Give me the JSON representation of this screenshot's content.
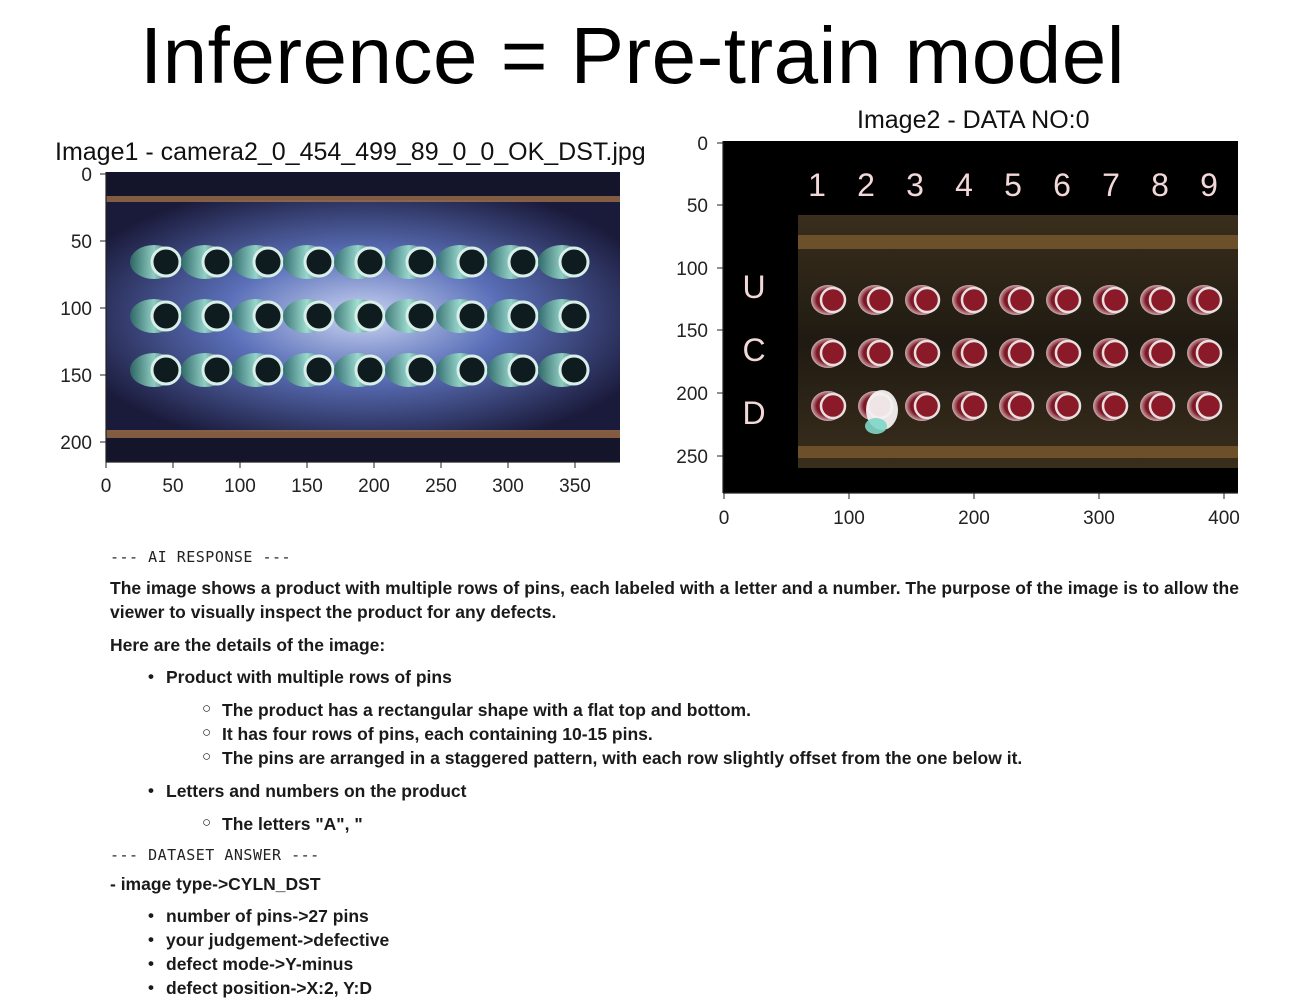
{
  "title": "Inference = Pre-train model",
  "image1": {
    "title": "Image1 - camera2_0_454_499_89_0_0_OK_DST.jpg",
    "yticks": [
      "0",
      "50",
      "100",
      "150",
      "200"
    ],
    "xticks": [
      "0",
      "50",
      "100",
      "150",
      "200",
      "250",
      "300",
      "350"
    ]
  },
  "image2": {
    "title": "Image2 - DATA NO:0",
    "yticks": [
      "0",
      "50",
      "100",
      "150",
      "200",
      "250"
    ],
    "xticks": [
      "0",
      "100",
      "200",
      "300",
      "400"
    ],
    "col_labels": [
      "1",
      "2",
      "3",
      "4",
      "5",
      "6",
      "7",
      "8",
      "9"
    ],
    "row_labels": [
      "U",
      "C",
      "D"
    ]
  },
  "ai_response": {
    "header": "--- AI RESPONSE ---",
    "paragraph": "The image shows a product with multiple rows of pins, each labeled with a letter and a number. The purpose of the image is to allow the viewer to visually inspect the product for any defects.",
    "details_intro": "Here are the details of the image:",
    "bullets": [
      {
        "text": "Product with multiple rows of pins",
        "sub": [
          "The product has a rectangular shape with a flat top and bottom.",
          "It has four rows of pins, each containing 10-15 pins.",
          "The pins are arranged in a staggered pattern, with each row slightly offset from the one below it."
        ]
      },
      {
        "text": "Letters and numbers on the product",
        "sub": [
          "The letters \"A\", \""
        ]
      }
    ]
  },
  "dataset_answer": {
    "header": "--- DATASET ANSWER ---",
    "type_line": "- image type->CYLN_DST",
    "items": [
      "number of pins->27 pins",
      "your judgement->defective",
      "defect mode->Y-minus",
      "defect position->X:2, Y:D"
    ]
  }
}
